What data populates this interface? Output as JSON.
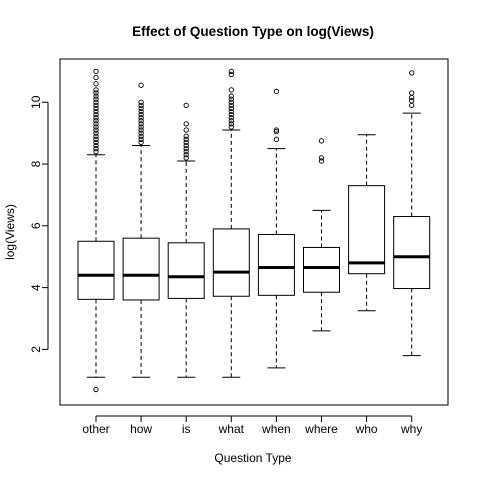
{
  "chart_data": {
    "type": "boxplot",
    "title": "Effect of Question Type on log(Views)",
    "xlabel": "Question Type",
    "ylabel": "log(Views)",
    "ylim": [
      0.2,
      11.4
    ],
    "yticks": [
      2,
      4,
      6,
      8,
      10
    ],
    "categories": [
      "other",
      "how",
      "is",
      "what",
      "when",
      "where",
      "who",
      "why"
    ],
    "boxes": [
      {
        "name": "other",
        "min": 1.1,
        "q1": 3.62,
        "median": 4.4,
        "q3": 5.5,
        "max": 8.3,
        "outliers": [
          0.7,
          8.4,
          8.5,
          8.6,
          8.7,
          8.8,
          8.9,
          9.0,
          9.1,
          9.2,
          9.3,
          9.4,
          9.5,
          9.6,
          9.7,
          9.8,
          9.9,
          10.0,
          10.1,
          10.2,
          10.3,
          10.4,
          10.6,
          10.8,
          11.0
        ]
      },
      {
        "name": "how",
        "min": 1.1,
        "q1": 3.6,
        "median": 4.4,
        "q3": 5.6,
        "max": 8.6,
        "outliers": [
          8.7,
          8.8,
          8.9,
          9.0,
          9.1,
          9.2,
          9.3,
          9.4,
          9.5,
          9.6,
          9.7,
          9.8,
          9.9,
          10.0,
          10.55
        ]
      },
      {
        "name": "is",
        "min": 1.1,
        "q1": 3.65,
        "median": 4.35,
        "q3": 5.45,
        "max": 8.1,
        "outliers": [
          8.2,
          8.3,
          8.4,
          8.5,
          8.6,
          8.7,
          8.8,
          8.9,
          9.1,
          9.3,
          9.9
        ]
      },
      {
        "name": "what",
        "min": 1.1,
        "q1": 3.72,
        "median": 4.5,
        "q3": 5.9,
        "max": 9.1,
        "outliers": [
          9.2,
          9.3,
          9.4,
          9.5,
          9.6,
          9.7,
          9.8,
          9.9,
          10.0,
          10.1,
          10.2,
          10.4,
          10.9,
          11.0
        ]
      },
      {
        "name": "when",
        "min": 1.4,
        "q1": 3.75,
        "median": 4.65,
        "q3": 5.72,
        "max": 8.5,
        "outliers": [
          8.8,
          9.05,
          9.1,
          10.35
        ]
      },
      {
        "name": "where",
        "min": 2.6,
        "q1": 3.85,
        "median": 4.65,
        "q3": 5.3,
        "max": 6.5,
        "outliers": [
          8.1,
          8.2,
          8.75
        ]
      },
      {
        "name": "who",
        "min": 3.25,
        "q1": 4.45,
        "median": 4.8,
        "q3": 7.3,
        "max": 8.95,
        "outliers": []
      },
      {
        "name": "why",
        "min": 1.8,
        "q1": 3.97,
        "median": 5.0,
        "q3": 6.3,
        "max": 9.65,
        "outliers": [
          9.9,
          10.05,
          10.15,
          10.3,
          10.95
        ]
      }
    ]
  }
}
